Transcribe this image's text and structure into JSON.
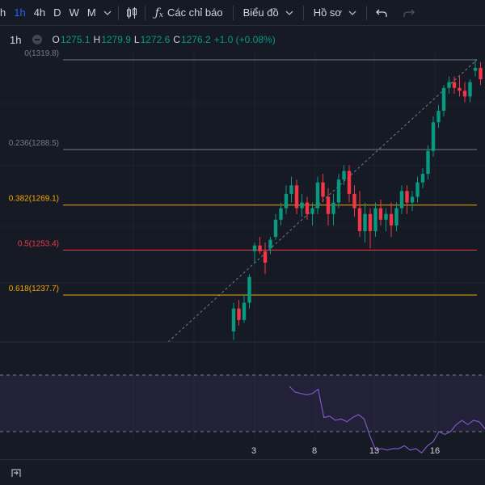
{
  "toolbar": {
    "timeframes": [
      {
        "label": "h",
        "active": false
      },
      {
        "label": "1h",
        "active": true
      },
      {
        "label": "4h",
        "active": false
      },
      {
        "label": "D",
        "active": false
      },
      {
        "label": "W",
        "active": false
      },
      {
        "label": "M",
        "active": false
      }
    ],
    "indicators_label": "Các chỉ báo",
    "chart_label": "Biểu đồ",
    "profile_label": "Hồ sơ"
  },
  "legend": {
    "interval": "1h",
    "open_key": "O",
    "open": "1275.1",
    "high_key": "H",
    "high": "1279.9",
    "low_key": "L",
    "low": "1272.6",
    "close_key": "C",
    "close": "1276.2",
    "change": "+1.0 (+0.08%)"
  },
  "chart_data": {
    "type": "candlestick",
    "colors": {
      "up": "#089981",
      "down": "#f23645",
      "background": "#161a25",
      "rsi": "#7e57c2"
    },
    "fib_levels": [
      {
        "ratio": 0,
        "price": 1319.8,
        "label": "0(1319.8)",
        "color": "#787b86"
      },
      {
        "ratio": 0.236,
        "price": 1288.5,
        "label": "0.236(1288.5)",
        "color": "#787b86"
      },
      {
        "ratio": 0.382,
        "price": 1269.1,
        "label": "0.382(1269.1)",
        "color": "#f7a600"
      },
      {
        "ratio": 0.5,
        "price": 1253.4,
        "label": "0.5(1253.4)",
        "color": "#f23645"
      },
      {
        "ratio": 0.618,
        "price": 1237.7,
        "label": "0.618(1237.7)",
        "color": "#f7a600"
      }
    ],
    "x_ticks": [
      "3",
      "8",
      "13",
      "16"
    ],
    "candles": [
      [
        1225,
        1235,
        1222,
        1233
      ],
      [
        1233,
        1236,
        1227,
        1229
      ],
      [
        1229,
        1238,
        1228,
        1235
      ],
      [
        1235,
        1245,
        1233,
        1244
      ],
      [
        1253,
        1256,
        1249,
        1255
      ],
      [
        1255,
        1258,
        1252,
        1253
      ],
      [
        1253,
        1256,
        1245,
        1249
      ],
      [
        1254,
        1258,
        1252,
        1257
      ],
      [
        1258,
        1266,
        1257,
        1264
      ],
      [
        1264,
        1270,
        1262,
        1268
      ],
      [
        1268,
        1276,
        1266,
        1273
      ],
      [
        1273,
        1279,
        1270,
        1276
      ],
      [
        1276,
        1278,
        1266,
        1268
      ],
      [
        1268,
        1273,
        1265,
        1270
      ],
      [
        1270,
        1272,
        1264,
        1266
      ],
      [
        1266,
        1270,
        1262,
        1268
      ],
      [
        1268,
        1279,
        1266,
        1277
      ],
      [
        1277,
        1280,
        1270,
        1272
      ],
      [
        1272,
        1275,
        1262,
        1266
      ],
      [
        1266,
        1273,
        1262,
        1270
      ],
      [
        1270,
        1280,
        1268,
        1278
      ],
      [
        1278,
        1283,
        1276,
        1281
      ],
      [
        1281,
        1283,
        1270,
        1273
      ],
      [
        1273,
        1276,
        1265,
        1268
      ],
      [
        1268,
        1274,
        1258,
        1260
      ],
      [
        1260,
        1270,
        1256,
        1266
      ],
      [
        1266,
        1268,
        1254,
        1260
      ],
      [
        1260,
        1270,
        1258,
        1268
      ],
      [
        1268,
        1271,
        1262,
        1264
      ],
      [
        1264,
        1268,
        1260,
        1266
      ],
      [
        1266,
        1270,
        1258,
        1262
      ],
      [
        1262,
        1270,
        1260,
        1268
      ],
      [
        1268,
        1276,
        1266,
        1274
      ],
      [
        1274,
        1276,
        1266,
        1270
      ],
      [
        1270,
        1274,
        1267,
        1272
      ],
      [
        1272,
        1279,
        1270,
        1277
      ],
      [
        1277,
        1282,
        1275,
        1280
      ],
      [
        1280,
        1290,
        1278,
        1288
      ],
      [
        1288,
        1300,
        1286,
        1298
      ],
      [
        1298,
        1304,
        1296,
        1302
      ],
      [
        1302,
        1311,
        1300,
        1310
      ],
      [
        1310,
        1314,
        1308,
        1312
      ],
      [
        1312,
        1314,
        1308,
        1310
      ],
      [
        1310,
        1314,
        1307,
        1309
      ],
      [
        1309,
        1312,
        1305,
        1307
      ],
      [
        1307,
        1313,
        1305,
        1312
      ],
      [
        1316,
        1320,
        1314,
        1317
      ],
      [
        1317,
        1319,
        1311,
        1313
      ]
    ],
    "rsi": [
      62,
      58,
      57,
      56,
      57,
      60,
      40,
      41,
      38,
      39,
      37,
      40,
      42,
      39,
      27,
      17,
      18,
      17,
      18,
      18,
      20,
      17,
      18,
      15,
      20,
      23,
      30,
      28,
      30,
      35,
      38,
      35,
      38,
      37,
      32
    ]
  }
}
